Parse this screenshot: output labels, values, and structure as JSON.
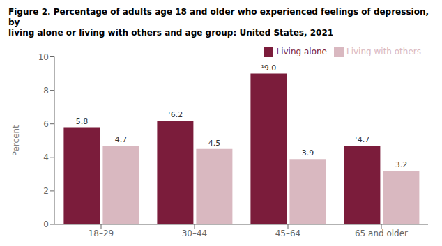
{
  "chart_data": {
    "type": "bar",
    "title": "Figure 2. Percentage of adults age 18 and older who experienced feelings of depression, by\nliving alone or living with others and age group: United States, 2021",
    "categories": [
      "18–29",
      "30–44",
      "45–64",
      "65 and older"
    ],
    "series": [
      {
        "name": "Living alone",
        "color": "#7B1C3B",
        "values": [
          5.8,
          6.2,
          9.0,
          4.7
        ],
        "value_labels": [
          "5.8",
          "¹6.2",
          "¹9.0",
          "¹4.7"
        ]
      },
      {
        "name": "Living with others",
        "color": "#D9B8C0",
        "values": [
          4.7,
          4.5,
          3.9,
          3.2
        ]
      }
    ],
    "ylabel": "Percent",
    "ylim": [
      0,
      10
    ],
    "yticks": [
      0,
      2,
      4,
      6,
      8,
      10
    ],
    "grid": false,
    "legend": "top",
    "data_labels": true
  }
}
